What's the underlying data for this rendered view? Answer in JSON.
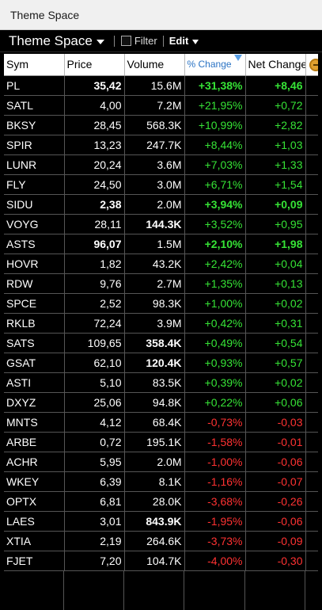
{
  "window": {
    "title": "Theme Space"
  },
  "toolbar": {
    "workspace_name": "Theme Space",
    "filter_label": "Filter",
    "edit_label": "Edit"
  },
  "columns": [
    "Sym",
    "Price",
    "Volume",
    "% Change",
    "Net Change"
  ],
  "rows": [
    {
      "sym": "PL",
      "price": "35,42",
      "volume": "15.6M",
      "pct": "+31,38%",
      "net": "+8,46",
      "dir": "up",
      "bold_price": true,
      "bold_volume": false,
      "bold_change": true
    },
    {
      "sym": "SATL",
      "price": "4,00",
      "volume": "7.2M",
      "pct": "+21,95%",
      "net": "+0,72",
      "dir": "up",
      "bold_price": false,
      "bold_volume": false,
      "bold_change": false
    },
    {
      "sym": "BKSY",
      "price": "28,45",
      "volume": "568.3K",
      "pct": "+10,99%",
      "net": "+2,82",
      "dir": "up",
      "bold_price": false,
      "bold_volume": false,
      "bold_change": false
    },
    {
      "sym": "SPIR",
      "price": "13,23",
      "volume": "247.7K",
      "pct": "+8,44%",
      "net": "+1,03",
      "dir": "up",
      "bold_price": false,
      "bold_volume": false,
      "bold_change": false
    },
    {
      "sym": "LUNR",
      "price": "20,24",
      "volume": "3.6M",
      "pct": "+7,03%",
      "net": "+1,33",
      "dir": "up",
      "bold_price": false,
      "bold_volume": false,
      "bold_change": false
    },
    {
      "sym": "FLY",
      "price": "24,50",
      "volume": "3.0M",
      "pct": "+6,71%",
      "net": "+1,54",
      "dir": "up",
      "bold_price": false,
      "bold_volume": false,
      "bold_change": false
    },
    {
      "sym": "SIDU",
      "price": "2,38",
      "volume": "2.0M",
      "pct": "+3,94%",
      "net": "+0,09",
      "dir": "up",
      "bold_price": true,
      "bold_volume": false,
      "bold_change": true
    },
    {
      "sym": "VOYG",
      "price": "28,11",
      "volume": "144.3K",
      "pct": "+3,52%",
      "net": "+0,95",
      "dir": "up",
      "bold_price": false,
      "bold_volume": true,
      "bold_change": false
    },
    {
      "sym": "ASTS",
      "price": "96,07",
      "volume": "1.5M",
      "pct": "+2,10%",
      "net": "+1,98",
      "dir": "up",
      "bold_price": true,
      "bold_volume": false,
      "bold_change": true
    },
    {
      "sym": "HOVR",
      "price": "1,82",
      "volume": "43.2K",
      "pct": "+2,42%",
      "net": "+0,04",
      "dir": "up",
      "bold_price": false,
      "bold_volume": false,
      "bold_change": false
    },
    {
      "sym": "RDW",
      "price": "9,76",
      "volume": "2.7M",
      "pct": "+1,35%",
      "net": "+0,13",
      "dir": "up",
      "bold_price": false,
      "bold_volume": false,
      "bold_change": false
    },
    {
      "sym": "SPCE",
      "price": "2,52",
      "volume": "98.3K",
      "pct": "+1,00%",
      "net": "+0,02",
      "dir": "up",
      "bold_price": false,
      "bold_volume": false,
      "bold_change": false
    },
    {
      "sym": "RKLB",
      "price": "72,24",
      "volume": "3.9M",
      "pct": "+0,42%",
      "net": "+0,31",
      "dir": "up",
      "bold_price": false,
      "bold_volume": false,
      "bold_change": false
    },
    {
      "sym": "SATS",
      "price": "109,65",
      "volume": "358.4K",
      "pct": "+0,49%",
      "net": "+0,54",
      "dir": "up",
      "bold_price": false,
      "bold_volume": true,
      "bold_change": false
    },
    {
      "sym": "GSAT",
      "price": "62,10",
      "volume": "120.4K",
      "pct": "+0,93%",
      "net": "+0,57",
      "dir": "up",
      "bold_price": false,
      "bold_volume": true,
      "bold_change": false
    },
    {
      "sym": "ASTI",
      "price": "5,10",
      "volume": "83.5K",
      "pct": "+0,39%",
      "net": "+0,02",
      "dir": "up",
      "bold_price": false,
      "bold_volume": false,
      "bold_change": false
    },
    {
      "sym": "DXYZ",
      "price": "25,06",
      "volume": "94.8K",
      "pct": "+0,22%",
      "net": "+0,06",
      "dir": "up",
      "bold_price": false,
      "bold_volume": false,
      "bold_change": false
    },
    {
      "sym": "MNTS",
      "price": "4,12",
      "volume": "68.4K",
      "pct": "-0,73%",
      "net": "-0,03",
      "dir": "down",
      "bold_price": false,
      "bold_volume": false,
      "bold_change": false
    },
    {
      "sym": "ARBE",
      "price": "0,72",
      "volume": "195.1K",
      "pct": "-1,58%",
      "net": "-0,01",
      "dir": "down",
      "bold_price": false,
      "bold_volume": false,
      "bold_change": false
    },
    {
      "sym": "ACHR",
      "price": "5,95",
      "volume": "2.0M",
      "pct": "-1,00%",
      "net": "-0,06",
      "dir": "down",
      "bold_price": false,
      "bold_volume": false,
      "bold_change": false
    },
    {
      "sym": "WKEY",
      "price": "6,39",
      "volume": "8.1K",
      "pct": "-1,16%",
      "net": "-0,07",
      "dir": "down",
      "bold_price": false,
      "bold_volume": false,
      "bold_change": false
    },
    {
      "sym": "OPTX",
      "price": "6,81",
      "volume": "28.0K",
      "pct": "-3,68%",
      "net": "-0,26",
      "dir": "down",
      "bold_price": false,
      "bold_volume": false,
      "bold_change": false
    },
    {
      "sym": "LAES",
      "price": "3,01",
      "volume": "843.9K",
      "pct": "-1,95%",
      "net": "-0,06",
      "dir": "down",
      "bold_price": false,
      "bold_volume": true,
      "bold_change": false
    },
    {
      "sym": "XTIA",
      "price": "2,19",
      "volume": "264.6K",
      "pct": "-3,73%",
      "net": "-0,09",
      "dir": "down",
      "bold_price": false,
      "bold_volume": false,
      "bold_change": false
    },
    {
      "sym": "FJET",
      "price": "7,20",
      "volume": "104.7K",
      "pct": "-4,00%",
      "net": "-0,30",
      "dir": "down",
      "bold_price": false,
      "bold_volume": false,
      "bold_change": false
    }
  ],
  "colors": {
    "up": "#36e336",
    "down": "#ff3232",
    "header_sorted": "#2a73c4"
  }
}
